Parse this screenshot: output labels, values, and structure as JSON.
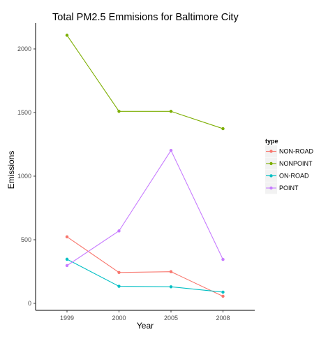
{
  "chart_data": {
    "type": "line",
    "title": "Total PM2.5 Emmisions for Baltimore City",
    "xlabel": "Year",
    "ylabel": "Emissions",
    "categories": [
      "1999",
      "2000",
      "2005",
      "2008"
    ],
    "ylim": [
      -50,
      2200
    ],
    "yticks": [
      0,
      500,
      1000,
      1500,
      2000
    ],
    "grid": false,
    "legend": {
      "title": "type",
      "position": "right"
    },
    "series": [
      {
        "name": "NON-ROAD",
        "color": "#F8766D",
        "values": [
          522.9,
          242.8,
          248.9,
          55.8
        ]
      },
      {
        "name": "NONPOINT",
        "color": "#7CAE00",
        "values": [
          2107.6,
          1509.5,
          1509.5,
          1373.2
        ]
      },
      {
        "name": "ON-ROAD",
        "color": "#00BFC4",
        "values": [
          346.8,
          134.3,
          130.4,
          88.3
        ]
      },
      {
        "name": "POINT",
        "color": "#C77CFF",
        "values": [
          296.8,
          569.3,
          1202.5,
          344.98
        ]
      }
    ]
  }
}
